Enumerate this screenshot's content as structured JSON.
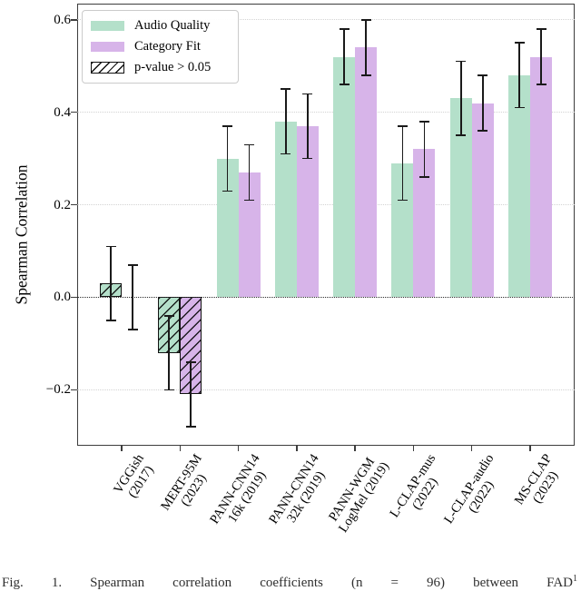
{
  "colors": {
    "audio_quality": "#b4e0ca",
    "category_fit": "#d7b4e9",
    "error_bar": "#1a1a1a",
    "hatch": "#131313"
  },
  "legend": {
    "items": [
      {
        "label": "Audio Quality",
        "swatch": "green"
      },
      {
        "label": "Category Fit",
        "swatch": "purple"
      },
      {
        "label": "p-value > 0.05",
        "swatch": "hatch"
      }
    ]
  },
  "caption": {
    "prefix": "Fig. 1.",
    "text": "Spearman correlation coefficients (n = 96) between FAD",
    "sup": "1"
  },
  "chart_data": {
    "type": "bar",
    "title": "",
    "xlabel": "",
    "ylabel": "Spearman Correlation",
    "ylim": [
      -0.32,
      0.635
    ],
    "yticks": [
      0.6,
      0.4,
      0.2,
      0.0,
      -0.2
    ],
    "grid": "horizontal-dotted",
    "zero_line": "dotted-black",
    "legend_position": "upper-left",
    "hatch_meaning": "p-value > 0.05",
    "categories": [
      "VGGish\n(2017)",
      "MERT-95M\n(2023)",
      "PANN-CNN14\n16k (2019)",
      "PANN-CNN14\n32k (2019)",
      "PANN-WGM\nLogMel (2019)",
      "L-CLAP-mus\n(2022)",
      "L-CLAP-audio\n(2022)",
      "MS-CLAP\n(2023)"
    ],
    "series": [
      {
        "name": "Audio Quality",
        "color": "#b4e0ca",
        "values": [
          0.03,
          -0.12,
          0.3,
          0.38,
          0.52,
          0.29,
          0.43,
          0.48
        ],
        "err": [
          0.08,
          0.08,
          0.07,
          0.07,
          0.06,
          0.08,
          0.08,
          0.07
        ],
        "hatched": [
          true,
          true,
          false,
          false,
          false,
          false,
          false,
          false
        ]
      },
      {
        "name": "Category Fit",
        "color": "#d7b4e9",
        "values": [
          0.0,
          -0.21,
          0.27,
          0.37,
          0.54,
          0.32,
          0.42,
          0.52
        ],
        "err": [
          0.07,
          0.07,
          0.06,
          0.07,
          0.06,
          0.06,
          0.06,
          0.06
        ],
        "hatched": [
          true,
          true,
          false,
          false,
          false,
          false,
          false,
          false
        ]
      }
    ]
  }
}
